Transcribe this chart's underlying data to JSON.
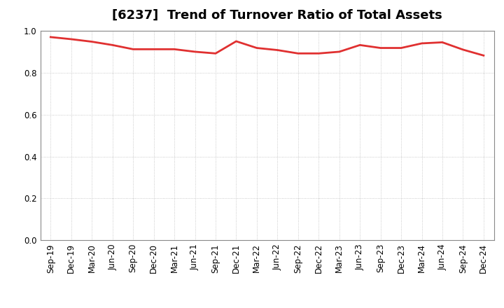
{
  "title": "[6237]  Trend of Turnover Ratio of Total Assets",
  "x_labels": [
    "Sep-19",
    "Dec-19",
    "Mar-20",
    "Jun-20",
    "Sep-20",
    "Dec-20",
    "Mar-21",
    "Jun-21",
    "Sep-21",
    "Dec-21",
    "Mar-22",
    "Jun-22",
    "Sep-22",
    "Dec-22",
    "Mar-23",
    "Jun-23",
    "Sep-23",
    "Dec-23",
    "Mar-24",
    "Jun-24",
    "Sep-24",
    "Dec-24"
  ],
  "y_values": [
    0.97,
    0.96,
    0.948,
    0.932,
    0.912,
    0.912,
    0.912,
    0.9,
    0.892,
    0.95,
    0.918,
    0.908,
    0.892,
    0.892,
    0.9,
    0.932,
    0.918,
    0.918,
    0.94,
    0.945,
    0.91,
    0.882
  ],
  "line_color": "#e03030",
  "line_width": 2.0,
  "background_color": "#ffffff",
  "grid_color": "#aaaaaa",
  "ylim": [
    0.0,
    1.0
  ],
  "yticks": [
    0.0,
    0.2,
    0.4,
    0.6,
    0.8,
    1.0
  ],
  "title_fontsize": 13,
  "tick_fontsize": 8.5
}
